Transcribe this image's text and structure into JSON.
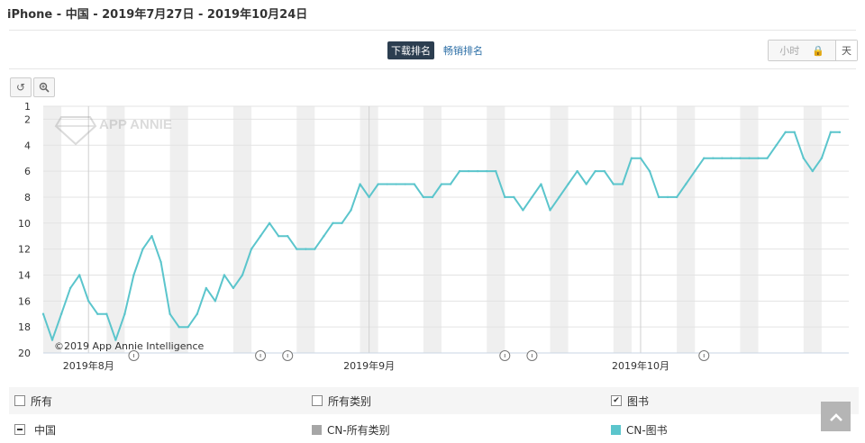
{
  "header": {
    "title": "iPhone - 中国 - 2019年7月27日 - 2019年10月24日"
  },
  "metric_tabs": [
    {
      "label": "下载排名",
      "active": true
    },
    {
      "label": "畅销排名",
      "active": false
    }
  ],
  "granularity": {
    "hour_label": "小时",
    "day_label": "天",
    "selected": "天"
  },
  "toolbar": {
    "reset_icon": "reset-icon",
    "zoom_icon": "zoom-icon"
  },
  "watermark": {
    "text": "APP ANNIE",
    "copyright": "©2019 App Annie Intelligence"
  },
  "chart_data": {
    "type": "line",
    "title": "",
    "xlabel": "",
    "ylabel": "",
    "y_inverted": true,
    "ylim": [
      20,
      1
    ],
    "y_ticks": [
      1,
      2,
      4,
      6,
      8,
      10,
      12,
      14,
      16,
      18,
      20
    ],
    "x_range": [
      "2019-07-27",
      "2019-10-24"
    ],
    "x_ticks": [
      {
        "date": "2019-08-01",
        "label": "2019年8月"
      },
      {
        "date": "2019-09-01",
        "label": "2019年9月"
      },
      {
        "date": "2019-10-01",
        "label": "2019年10月"
      }
    ],
    "grid": true,
    "weekend_shading": true,
    "series": [
      {
        "name": "CN-图书",
        "color": "#5bc5cc",
        "points": [
          [
            "2019-07-27",
            17
          ],
          [
            "2019-07-28",
            19
          ],
          [
            "2019-07-29",
            17
          ],
          [
            "2019-07-30",
            15
          ],
          [
            "2019-07-31",
            14
          ],
          [
            "2019-08-01",
            16
          ],
          [
            "2019-08-02",
            17
          ],
          [
            "2019-08-03",
            17
          ],
          [
            "2019-08-04",
            19
          ],
          [
            "2019-08-05",
            17
          ],
          [
            "2019-08-06",
            14
          ],
          [
            "2019-08-07",
            12
          ],
          [
            "2019-08-08",
            11
          ],
          [
            "2019-08-09",
            13
          ],
          [
            "2019-08-10",
            17
          ],
          [
            "2019-08-11",
            18
          ],
          [
            "2019-08-12",
            18
          ],
          [
            "2019-08-13",
            17
          ],
          [
            "2019-08-14",
            15
          ],
          [
            "2019-08-15",
            16
          ],
          [
            "2019-08-16",
            14
          ],
          [
            "2019-08-17",
            15
          ],
          [
            "2019-08-18",
            14
          ],
          [
            "2019-08-19",
            12
          ],
          [
            "2019-08-20",
            11
          ],
          [
            "2019-08-21",
            10
          ],
          [
            "2019-08-22",
            11
          ],
          [
            "2019-08-23",
            11
          ],
          [
            "2019-08-24",
            12
          ],
          [
            "2019-08-25",
            12
          ],
          [
            "2019-08-26",
            12
          ],
          [
            "2019-08-27",
            11
          ],
          [
            "2019-08-28",
            10
          ],
          [
            "2019-08-29",
            10
          ],
          [
            "2019-08-30",
            9
          ],
          [
            "2019-08-31",
            7
          ],
          [
            "2019-09-01",
            8
          ],
          [
            "2019-09-02",
            7
          ],
          [
            "2019-09-03",
            7
          ],
          [
            "2019-09-04",
            7
          ],
          [
            "2019-09-05",
            7
          ],
          [
            "2019-09-06",
            7
          ],
          [
            "2019-09-07",
            8
          ],
          [
            "2019-09-08",
            8
          ],
          [
            "2019-09-09",
            7
          ],
          [
            "2019-09-10",
            7
          ],
          [
            "2019-09-11",
            6
          ],
          [
            "2019-09-12",
            6
          ],
          [
            "2019-09-13",
            6
          ],
          [
            "2019-09-14",
            6
          ],
          [
            "2019-09-15",
            6
          ],
          [
            "2019-09-16",
            8
          ],
          [
            "2019-09-17",
            8
          ],
          [
            "2019-09-18",
            9
          ],
          [
            "2019-09-19",
            8
          ],
          [
            "2019-09-20",
            7
          ],
          [
            "2019-09-21",
            9
          ],
          [
            "2019-09-22",
            8
          ],
          [
            "2019-09-23",
            7
          ],
          [
            "2019-09-24",
            6
          ],
          [
            "2019-09-25",
            7
          ],
          [
            "2019-09-26",
            6
          ],
          [
            "2019-09-27",
            6
          ],
          [
            "2019-09-28",
            7
          ],
          [
            "2019-09-29",
            7
          ],
          [
            "2019-09-30",
            5
          ],
          [
            "2019-10-01",
            5
          ],
          [
            "2019-10-02",
            6
          ],
          [
            "2019-10-03",
            8
          ],
          [
            "2019-10-04",
            8
          ],
          [
            "2019-10-05",
            8
          ],
          [
            "2019-10-06",
            7
          ],
          [
            "2019-10-07",
            6
          ],
          [
            "2019-10-08",
            5
          ],
          [
            "2019-10-09",
            5
          ],
          [
            "2019-10-10",
            5
          ],
          [
            "2019-10-11",
            5
          ],
          [
            "2019-10-12",
            5
          ],
          [
            "2019-10-13",
            5
          ],
          [
            "2019-10-14",
            5
          ],
          [
            "2019-10-15",
            5
          ],
          [
            "2019-10-16",
            4
          ],
          [
            "2019-10-17",
            3
          ],
          [
            "2019-10-18",
            3
          ],
          [
            "2019-10-19",
            5
          ],
          [
            "2019-10-20",
            6
          ],
          [
            "2019-10-21",
            5
          ],
          [
            "2019-10-22",
            3
          ],
          [
            "2019-10-23",
            3
          ]
        ]
      }
    ],
    "annotation_markers": [
      "2019-08-06",
      "2019-08-20",
      "2019-08-23",
      "2019-09-16",
      "2019-09-19",
      "2019-10-08"
    ]
  },
  "legend": {
    "row1": [
      {
        "label": "所有",
        "checked": false
      },
      {
        "label": "所有类别",
        "checked": false
      },
      {
        "label": "图书",
        "checked": true
      }
    ],
    "row2": [
      {
        "label": "中国",
        "kind": "minus"
      },
      {
        "label": "CN-所有类别",
        "color": "#a6a6a6"
      },
      {
        "label": "CN-图书",
        "color": "#5bc5cc"
      }
    ]
  },
  "scroll_top_icon": "arrow-up-icon"
}
